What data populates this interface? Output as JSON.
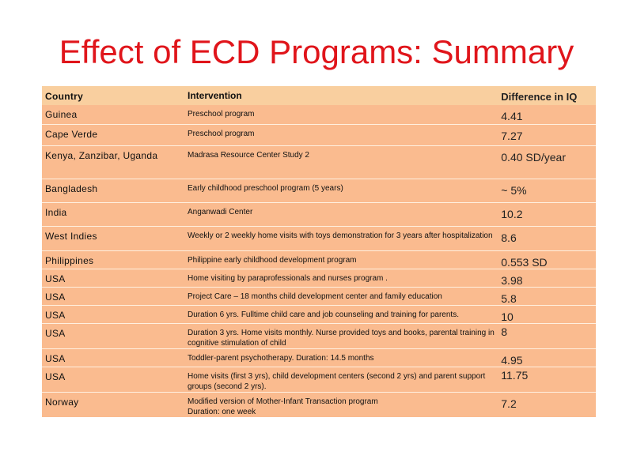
{
  "title": "Effect of ECD Programs: Summary",
  "table": {
    "headers": {
      "country": "Country",
      "intervention": "Intervention",
      "difference": "Difference in IQ"
    },
    "rows": [
      {
        "country": "Guinea",
        "intervention": "Preschool program",
        "difference": "4.41"
      },
      {
        "country": "Cape Verde",
        "intervention": "Preschool program",
        "difference": "7.27"
      },
      {
        "country": "Kenya, Zanzibar, Uganda",
        "intervention": "Madrasa Resource Center Study 2",
        "difference": "0.40 SD/year"
      },
      {
        "country": "Bangladesh",
        "intervention": "Early childhood preschool program (5 years)",
        "difference": "~ 5%"
      },
      {
        "country": "India",
        "intervention": "Anganwadi Center",
        "difference": "10.2"
      },
      {
        "country": "West Indies",
        "intervention": "Weekly or 2 weekly home visits with toys demonstration for 3 years after hospitalization",
        "difference": "8.6"
      },
      {
        "country": "Philippines",
        "intervention": "Philippine early childhood development program",
        "difference": "0.553 SD"
      },
      {
        "country": "USA",
        "intervention": "Home visiting by paraprofessionals and nurses program .",
        "difference": "3.98"
      },
      {
        "country": "USA",
        "intervention": "Project Care – 18 months child development center and family education",
        "difference": "5.8"
      },
      {
        "country": "USA",
        "intervention": "Duration 6 yrs. Fulltime child care and job counseling and training for parents.",
        "difference": "10"
      },
      {
        "country": "USA",
        "intervention": "Duration 3 yrs. Home visits monthly. Nurse provided toys and books, parental training in cognitive stimulation of child",
        "difference": "8"
      },
      {
        "country": "USA",
        "intervention": "Toddler-parent psychotherapy. Duration: 14.5 months",
        "difference": "4.95"
      },
      {
        "country": "USA",
        "intervention": "Home visits (first 3 yrs), child development centers (second 2 yrs) and parent support groups (second 2 yrs).",
        "difference": "11.75"
      },
      {
        "country": "Norway",
        "intervention": "Modified version of Mother-Infant Transaction program",
        "intervention_line2": "Duration: one week",
        "difference": "7.2"
      }
    ]
  }
}
